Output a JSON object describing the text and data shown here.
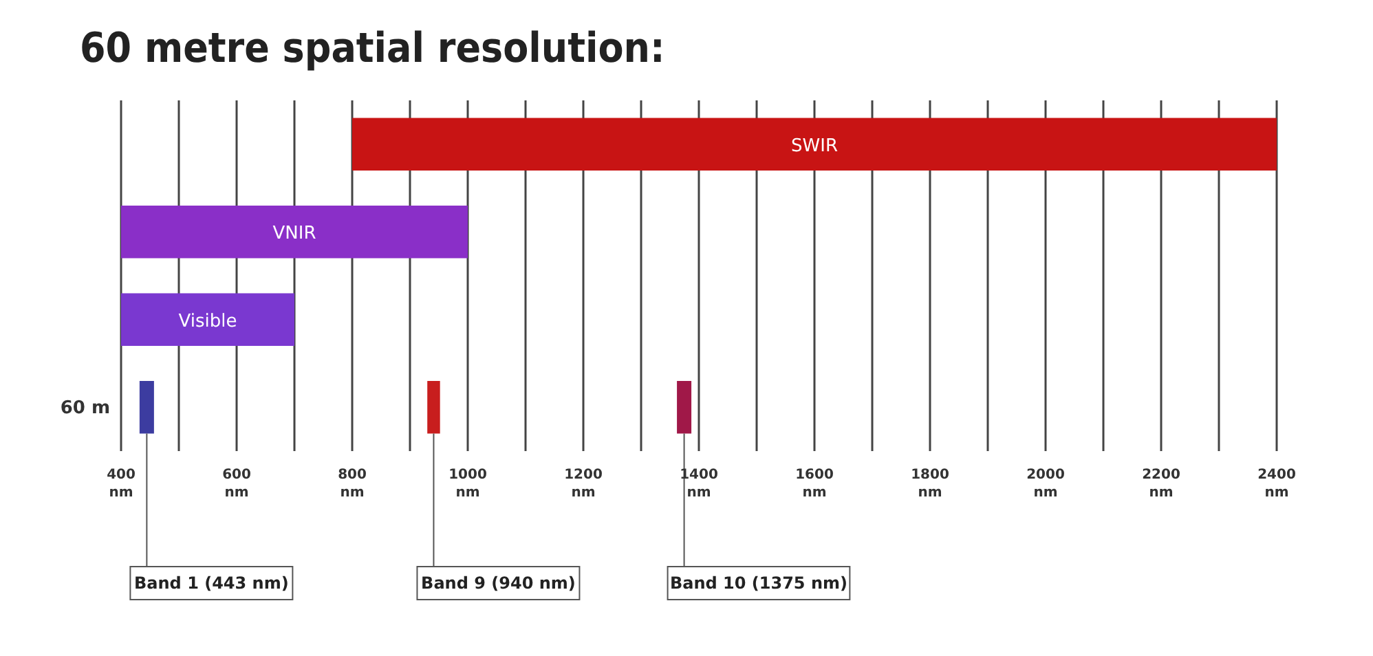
{
  "chart_data": {
    "type": "bar",
    "orientation": "horizontal",
    "title": "60 metre spatial resolution:",
    "categories": [
      null,
      null,
      null,
      "60 m"
    ],
    "series": [
      {
        "name": "SWIR",
        "color": "#c81414",
        "values": [
          1600,
          null,
          null,
          null
        ],
        "base": [
          800,
          null,
          null,
          null
        ]
      },
      {
        "name": "VNIR",
        "color": "#8a2fc8",
        "values": [
          null,
          600,
          null,
          null
        ],
        "base": [
          null,
          400,
          null,
          null
        ]
      },
      {
        "name": "Visible",
        "color": "#7a38d0",
        "values": [
          null,
          null,
          300,
          null
        ],
        "base": [
          null,
          null,
          400,
          null
        ]
      },
      {
        "name": "Band 1 (443 nm)",
        "color": "#3c3ca0",
        "values": [
          null,
          null,
          null,
          25
        ],
        "base": [
          null,
          null,
          null,
          432
        ]
      },
      {
        "name": "Band 9 (940 nm)",
        "color": "#c81e1e",
        "values": [
          null,
          null,
          null,
          22
        ],
        "base": [
          null,
          null,
          null,
          930
        ]
      },
      {
        "name": "Band 10 (1375 nm)",
        "color": "#a01848",
        "values": [
          null,
          null,
          null,
          25
        ],
        "base": [
          null,
          null,
          null,
          1362
        ]
      }
    ],
    "xlim": [
      400,
      2400
    ],
    "xticks": [
      {
        "value": 400,
        "label": "400 nm"
      },
      {
        "value": 500,
        "label": null
      },
      {
        "value": 600,
        "label": "600 nm"
      },
      {
        "value": 700,
        "label": null
      },
      {
        "value": 800,
        "label": "800 nm"
      },
      {
        "value": 900,
        "label": null
      },
      {
        "value": 1000,
        "label": "1000 nm"
      },
      {
        "value": 1100,
        "label": null
      },
      {
        "value": 1200,
        "label": "1200 nm"
      },
      {
        "value": 1300,
        "label": null
      },
      {
        "value": 1400,
        "label": "1400 nm"
      },
      {
        "value": 1500,
        "label": null
      },
      {
        "value": 1600,
        "label": "1600 nm"
      },
      {
        "value": 1700,
        "label": null
      },
      {
        "value": 1800,
        "label": "1800 nm"
      },
      {
        "value": 1900,
        "label": null
      },
      {
        "value": 2000,
        "label": "2000 nm"
      },
      {
        "value": 2100,
        "label": null
      },
      {
        "value": 2200,
        "label": "2200 nm"
      },
      {
        "value": 2300,
        "label": null
      },
      {
        "value": 2400,
        "label": "2400 nm"
      }
    ],
    "grid": "x"
  }
}
